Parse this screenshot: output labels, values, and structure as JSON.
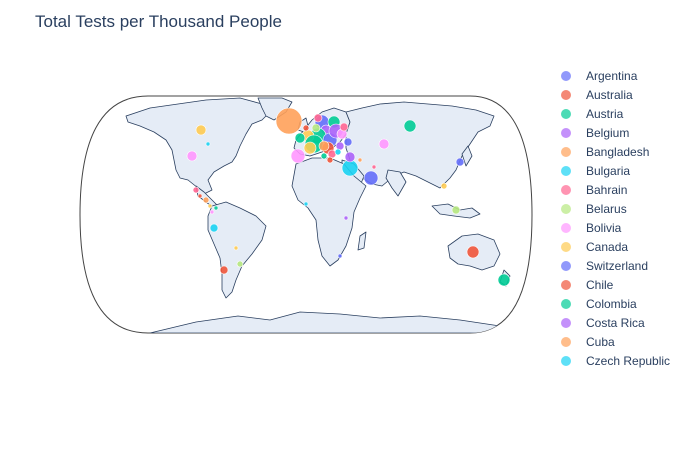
{
  "title": "Total Tests per Thousand People",
  "legend": [
    {
      "name": "Argentina",
      "color": "#636efa"
    },
    {
      "name": "Australia",
      "color": "#EF553B"
    },
    {
      "name": "Austria",
      "color": "#00cc96"
    },
    {
      "name": "Belgium",
      "color": "#ab63fa"
    },
    {
      "name": "Bangladesh",
      "color": "#FFA15A"
    },
    {
      "name": "Bulgaria",
      "color": "#19d3f3"
    },
    {
      "name": "Bahrain",
      "color": "#FF6692"
    },
    {
      "name": "Belarus",
      "color": "#B6E880"
    },
    {
      "name": "Bolivia",
      "color": "#FF97FF"
    },
    {
      "name": "Canada",
      "color": "#FECB52"
    },
    {
      "name": "Switzerland",
      "color": "#636efa"
    },
    {
      "name": "Chile",
      "color": "#EF553B"
    },
    {
      "name": "Colombia",
      "color": "#00cc96"
    },
    {
      "name": "Costa Rica",
      "color": "#ab63fa"
    },
    {
      "name": "Cuba",
      "color": "#FFA15A"
    },
    {
      "name": "Czech Republic",
      "color": "#19d3f3"
    }
  ],
  "map": {
    "projection": "natural earth",
    "land_color": "#e5ecf6",
    "coastline_color": "#2a3f5f"
  }
}
